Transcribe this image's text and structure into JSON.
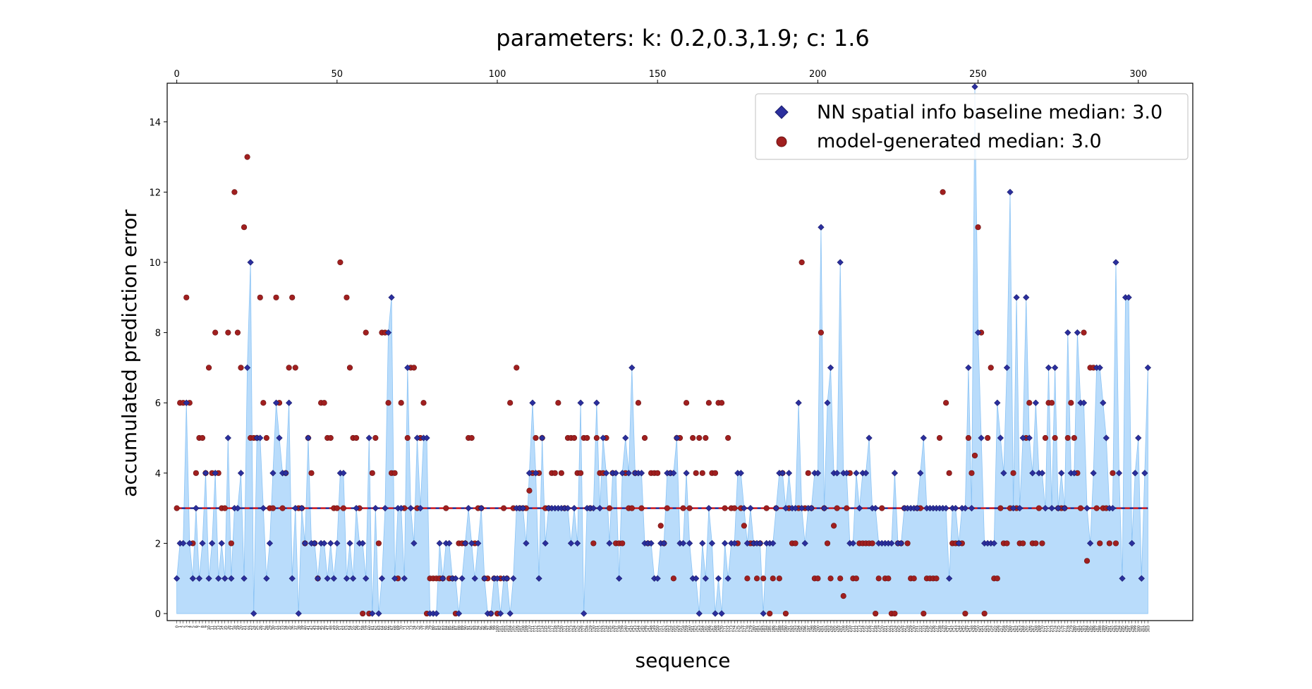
{
  "chart_data": {
    "type": "scatter",
    "title": "parameters: k: 0.2,0.3,1.9; c: 1.6",
    "xlabel": "sequence",
    "ylabel": "accumulated prediction error",
    "xlim": [
      -3,
      317
    ],
    "ylim": [
      -0.2,
      15.1
    ],
    "xticks_top": [
      0,
      50,
      100,
      150,
      200,
      250,
      300
    ],
    "yticks": [
      0,
      2,
      4,
      6,
      8,
      10,
      12,
      14
    ],
    "grid": false,
    "legend_position": "top-right",
    "colors": {
      "baseline_marker": "#2b2f9e",
      "baseline_fill": "#b9dcfb",
      "baseline_line": "#8cc4f5",
      "baseline_median": "#1f2a96",
      "model_marker": "#a01f1f",
      "model_median": "#d92020"
    },
    "medians": {
      "baseline": 3.0,
      "model": 3.0
    },
    "series": [
      {
        "name": "NN spatial info baseline median: 3.0",
        "marker": "diamond-icon",
        "values": [
          1,
          2,
          2,
          6,
          2,
          1,
          3,
          1,
          2,
          4,
          1,
          2,
          4,
          1,
          2,
          1,
          5,
          1,
          3,
          3,
          4,
          1,
          7,
          10,
          0,
          5,
          5,
          3,
          1,
          2,
          4,
          6,
          5,
          4,
          4,
          6,
          1,
          3,
          0,
          3,
          2,
          5,
          2,
          2,
          1,
          2,
          2,
          1,
          2,
          1,
          2,
          4,
          4,
          1,
          2,
          1,
          3,
          2,
          2,
          1,
          5,
          0,
          3,
          0,
          1,
          3,
          8,
          9,
          1,
          3,
          3,
          1,
          7,
          3,
          2,
          5,
          3,
          5,
          5,
          0,
          0,
          0,
          2,
          1,
          2,
          2,
          1,
          1,
          0,
          1,
          2,
          3,
          2,
          1,
          2,
          3,
          1,
          0,
          0,
          1,
          1,
          0,
          1,
          1,
          0,
          1,
          3,
          3,
          3,
          2,
          4,
          6,
          4,
          1,
          5,
          2,
          3,
          3,
          3,
          3,
          3,
          3,
          3,
          2,
          3,
          2,
          6,
          0,
          3,
          3,
          3,
          6,
          3,
          5,
          4,
          2,
          4,
          4,
          1,
          4,
          5,
          4,
          7,
          4,
          4,
          4,
          2,
          2,
          2,
          1,
          1,
          2,
          2,
          4,
          4,
          4,
          5,
          2,
          2,
          4,
          2,
          1,
          1,
          0,
          2,
          1,
          3,
          2,
          0,
          1,
          0,
          2,
          1,
          2,
          2,
          4,
          4,
          3,
          2,
          3,
          2,
          2,
          2,
          0,
          2,
          2,
          2,
          3,
          4,
          4,
          3,
          4,
          3,
          3,
          6,
          3,
          2,
          3,
          3,
          4,
          4,
          11,
          3,
          6,
          7,
          4,
          4,
          10,
          4,
          4,
          2,
          2,
          4,
          3,
          4,
          4,
          5,
          3,
          3,
          2,
          2,
          2,
          2,
          2,
          4,
          2,
          2,
          3,
          3,
          3,
          3,
          3,
          4,
          5,
          3,
          3,
          3,
          3,
          3,
          3,
          3,
          1,
          3,
          3,
          2,
          3,
          3,
          7,
          3,
          15,
          8,
          5,
          2,
          2,
          2,
          2,
          6,
          5,
          4,
          7,
          12,
          3,
          9,
          3,
          5,
          9,
          5,
          4,
          6,
          4,
          4,
          3,
          7,
          3,
          7,
          3,
          4,
          3,
          8,
          4,
          4,
          8,
          6,
          6,
          3,
          2,
          4,
          7,
          7,
          6,
          5,
          3,
          3,
          10,
          4,
          1,
          9,
          9,
          2,
          4,
          5,
          1,
          4,
          7
        ]
      },
      {
        "name": "model-generated median: 3.0",
        "marker": "circle-icon",
        "values": [
          3,
          6,
          6,
          9,
          6,
          2,
          4,
          5,
          5,
          4,
          7,
          4,
          8,
          4,
          3,
          3,
          8,
          2,
          12,
          8,
          7,
          11,
          13,
          5,
          5,
          5,
          9,
          6,
          5,
          3,
          3,
          9,
          6,
          3,
          4,
          7,
          9,
          7,
          3,
          3,
          2,
          5,
          4,
          2,
          1,
          6,
          6,
          5,
          5,
          3,
          3,
          10,
          3,
          9,
          7,
          5,
          5,
          3,
          0,
          8,
          0,
          4,
          5,
          2,
          8,
          8,
          6,
          4,
          4,
          1,
          6,
          3,
          5,
          7,
          7,
          3,
          5,
          6,
          0,
          1,
          1,
          1,
          1,
          1,
          3,
          1,
          1,
          0,
          2,
          2,
          2,
          5,
          5,
          2,
          3,
          3,
          1,
          1,
          0,
          1,
          0,
          1,
          3,
          1,
          6,
          3,
          7,
          3,
          3,
          3,
          3.5,
          4,
          5,
          4,
          5,
          3,
          3,
          4,
          4,
          6,
          4,
          3,
          5,
          5,
          5,
          4,
          4,
          5,
          5,
          3,
          2,
          5,
          4,
          4,
          5,
          3,
          4,
          2,
          2,
          2,
          4,
          3,
          3,
          4,
          6,
          3,
          5,
          2,
          4,
          4,
          4,
          2.5,
          2,
          3,
          4,
          1,
          5,
          5,
          3,
          6,
          3,
          5,
          4,
          5,
          4,
          5,
          6,
          4,
          4,
          6,
          6,
          3,
          5,
          3,
          3,
          2,
          3,
          2.5,
          1,
          2,
          2,
          1,
          2,
          1,
          3,
          0,
          1,
          3,
          1,
          4,
          0,
          3,
          2,
          2,
          3,
          10,
          3,
          4,
          3,
          1,
          1,
          8,
          3,
          2,
          1,
          2.5,
          3,
          1,
          0.5,
          3,
          4,
          1,
          1,
          2,
          2,
          2,
          2,
          2,
          0,
          1,
          3,
          1,
          1,
          0,
          0,
          2,
          2,
          3,
          2,
          1,
          1,
          3,
          3,
          0,
          1,
          1,
          1,
          1,
          5,
          12,
          6,
          4,
          2,
          2,
          2,
          2,
          0,
          5,
          4,
          4.5,
          11,
          8,
          0,
          5,
          7,
          1,
          1,
          3,
          2,
          2,
          3,
          4,
          3,
          2,
          2,
          5,
          6,
          2,
          2,
          3,
          2,
          5,
          6,
          6,
          5,
          3,
          3,
          3,
          5,
          6,
          5,
          4,
          3,
          8,
          1.5,
          7,
          7,
          3,
          2,
          3,
          3,
          2,
          4,
          2
        ]
      }
    ]
  }
}
